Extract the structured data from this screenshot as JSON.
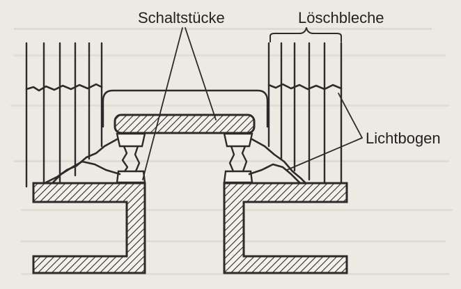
{
  "labels": {
    "contacts": "Schaltstücke",
    "arc_plates": "Löschbleche",
    "arc": "Lichtbogen"
  },
  "colors": {
    "paper": "#eceae3",
    "ink": "#2b2b2b",
    "bleed_text": "#c9c6bd"
  }
}
